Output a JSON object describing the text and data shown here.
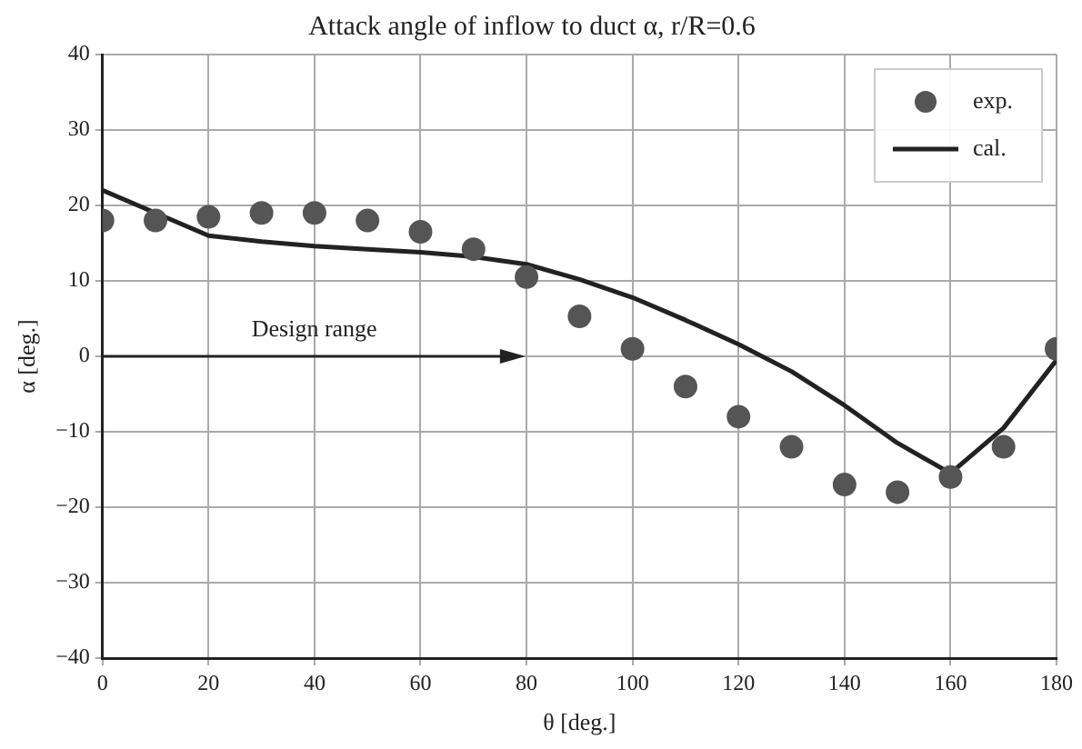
{
  "chart_data": {
    "type": "scatter",
    "title": "Attack angle of inflow to duct α, r/R=0.6",
    "xlabel": "θ [deg.]",
    "ylabel": "α [deg.]",
    "annotations": [
      "Design range"
    ],
    "series": [
      {
        "name": "exp.",
        "marker": "circle",
        "color": "#555555",
        "x": [
          0,
          10,
          20,
          30,
          40,
          50,
          60,
          70,
          80,
          90,
          100,
          110,
          120,
          130,
          140,
          150,
          160,
          170,
          180
        ],
        "values": [
          18,
          18,
          18.5,
          19,
          19,
          18,
          16.5,
          14.2,
          10.5,
          5.3,
          1,
          -4,
          -8,
          -12,
          -17,
          -18,
          -16,
          -12,
          1
        ]
      },
      {
        "name": "cal.",
        "type": "line",
        "marker": "none",
        "line_style": "solid",
        "color": "#222222",
        "x": [
          0,
          10,
          20,
          30,
          40,
          50,
          60,
          70,
          80,
          90,
          100,
          110,
          120,
          130,
          140,
          150,
          160,
          170,
          180
        ],
        "values": [
          22,
          19,
          16,
          15.2,
          14.6,
          14.2,
          13.8,
          13.2,
          12.2,
          10.2,
          7.8,
          4.8,
          1.6,
          -2,
          -6.5,
          -11.5,
          -15.5,
          -9.5,
          -0.5
        ]
      }
    ],
    "xlim": [
      0,
      180
    ],
    "xticks": [
      0,
      20,
      40,
      60,
      80,
      100,
      120,
      140,
      160,
      180
    ],
    "ylim": [
      -40,
      40
    ],
    "yticks": [
      -40,
      -30,
      -20,
      -10,
      0,
      10,
      20,
      30,
      40
    ],
    "grid": true,
    "legend": "top right"
  }
}
